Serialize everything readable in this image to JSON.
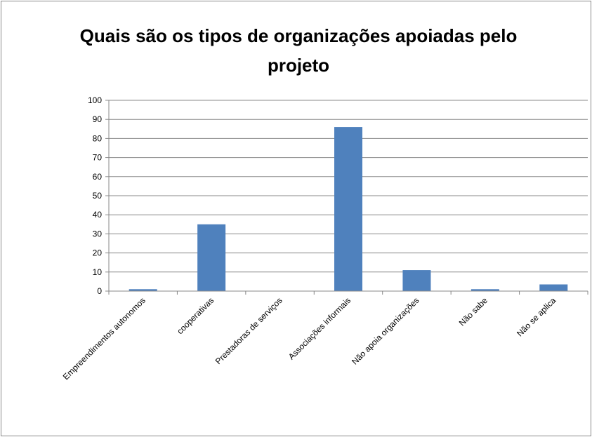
{
  "chart_data": {
    "type": "bar",
    "title": "Quais são os tipos de organizações apoiadas pelo projeto",
    "categories": [
      "Empreendimentos autonomos",
      "cooperativas",
      "Prestadoras de serviços",
      "Associações informais",
      "Não apoia organizações",
      "Não sabe",
      "Não se aplica"
    ],
    "values": [
      1,
      35,
      0,
      86,
      11,
      1,
      3.5
    ],
    "color": "#4f81bd",
    "ylim": [
      0,
      100
    ],
    "yticks": [
      0,
      10,
      20,
      30,
      40,
      50,
      60,
      70,
      80,
      90,
      100
    ],
    "grid": true
  }
}
